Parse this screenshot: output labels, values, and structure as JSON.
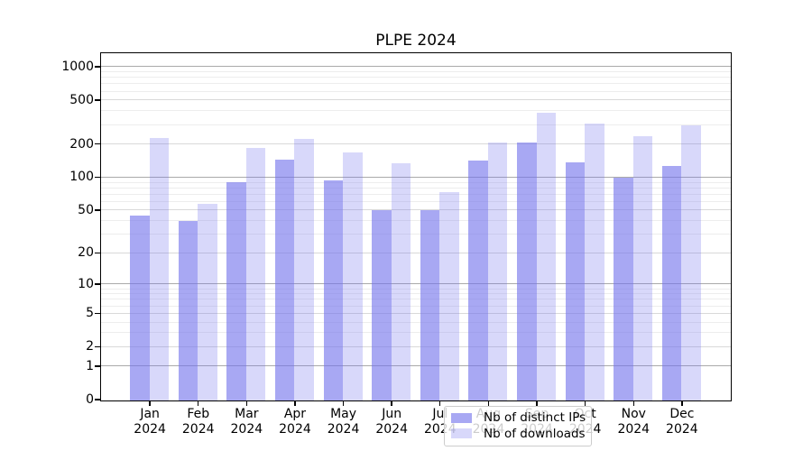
{
  "chart_data": {
    "type": "bar",
    "title": "PLPE 2024",
    "categories": [
      "Jan",
      "Feb",
      "Mar",
      "Apr",
      "May",
      "Jun",
      "Jul",
      "Aug",
      "Sep",
      "Oct",
      "Nov",
      "Dec"
    ],
    "x_year_label": "2024",
    "series": [
      {
        "name": "Nb of distinct IPs",
        "color": "rgba(115,115,236,0.62)",
        "values": [
          45,
          40,
          91,
          146,
          94,
          50,
          50,
          142,
          208,
          139,
          100,
          127
        ]
      },
      {
        "name": "Nb of downloads",
        "color": "rgba(115,115,236,0.28)",
        "values": [
          230,
          58,
          187,
          225,
          168,
          136,
          74,
          210,
          390,
          308,
          240,
          300
        ]
      }
    ],
    "y_axis": {
      "scale": "log1p",
      "tick_values": [
        0,
        1,
        2,
        5,
        10,
        20,
        50,
        100,
        200,
        500,
        1000
      ],
      "tick_labels": [
        "0",
        "1",
        "2",
        "5",
        "10",
        "20",
        "50",
        "100",
        "200",
        "500",
        "1000"
      ],
      "minor_gridline_values": [
        3,
        4,
        6,
        7,
        8,
        9,
        30,
        40,
        60,
        70,
        80,
        90,
        300,
        400,
        600,
        700,
        800,
        900
      ],
      "range_max": 1320
    },
    "grid": true,
    "legend_position": "lower-center"
  },
  "colors": {
    "background": "#ffffff",
    "axis_frame": "#000000",
    "major_gridline": "#aaaaaa",
    "labeled_gridline": "#d9d9d9",
    "minor_gridline": "#ededed",
    "bar_base": "#7373ec"
  }
}
